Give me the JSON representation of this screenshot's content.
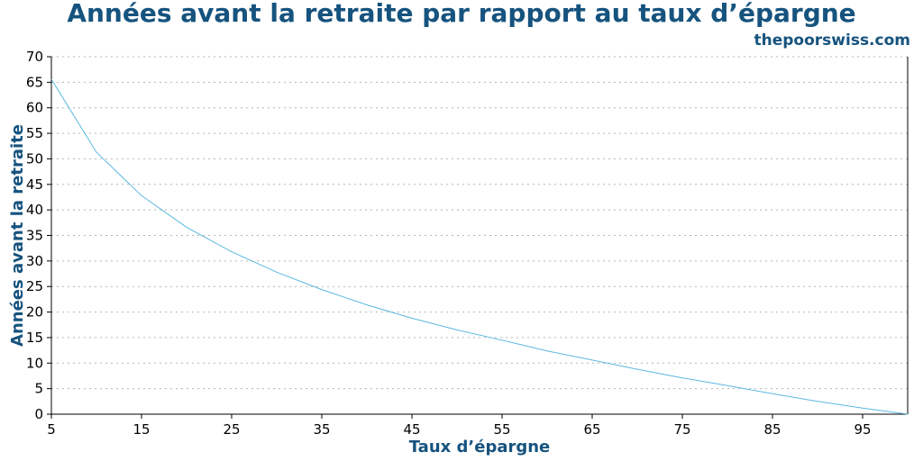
{
  "chart_data": {
    "type": "line",
    "title": "Années avant la retraite par rapport au taux d’épargne",
    "source": "thepoorswiss.com",
    "xlabel": "Taux d’épargne",
    "ylabel": "Années avant la retraite",
    "xlim": [
      5,
      100
    ],
    "ylim": [
      0,
      70
    ],
    "x_ticks": [
      5,
      15,
      25,
      35,
      45,
      55,
      65,
      75,
      85,
      95
    ],
    "y_ticks": [
      0,
      5,
      10,
      15,
      20,
      25,
      30,
      35,
      40,
      45,
      50,
      55,
      60,
      65,
      70
    ],
    "grid": {
      "horizontal": true,
      "style": "dotted"
    },
    "line_color": "#5bb8e0",
    "series": [
      {
        "x": [
          5,
          10,
          15,
          20,
          25,
          30,
          35,
          40,
          45,
          50,
          55,
          60,
          65,
          70,
          75,
          80,
          85,
          90,
          95,
          100
        ],
        "values": [
          65.6,
          51.3,
          42.8,
          36.6,
          31.8,
          27.8,
          24.4,
          21.4,
          18.8,
          16.5,
          14.5,
          12.4,
          10.6,
          8.8,
          7.1,
          5.6,
          4.0,
          2.5,
          1.2,
          0
        ]
      }
    ]
  }
}
